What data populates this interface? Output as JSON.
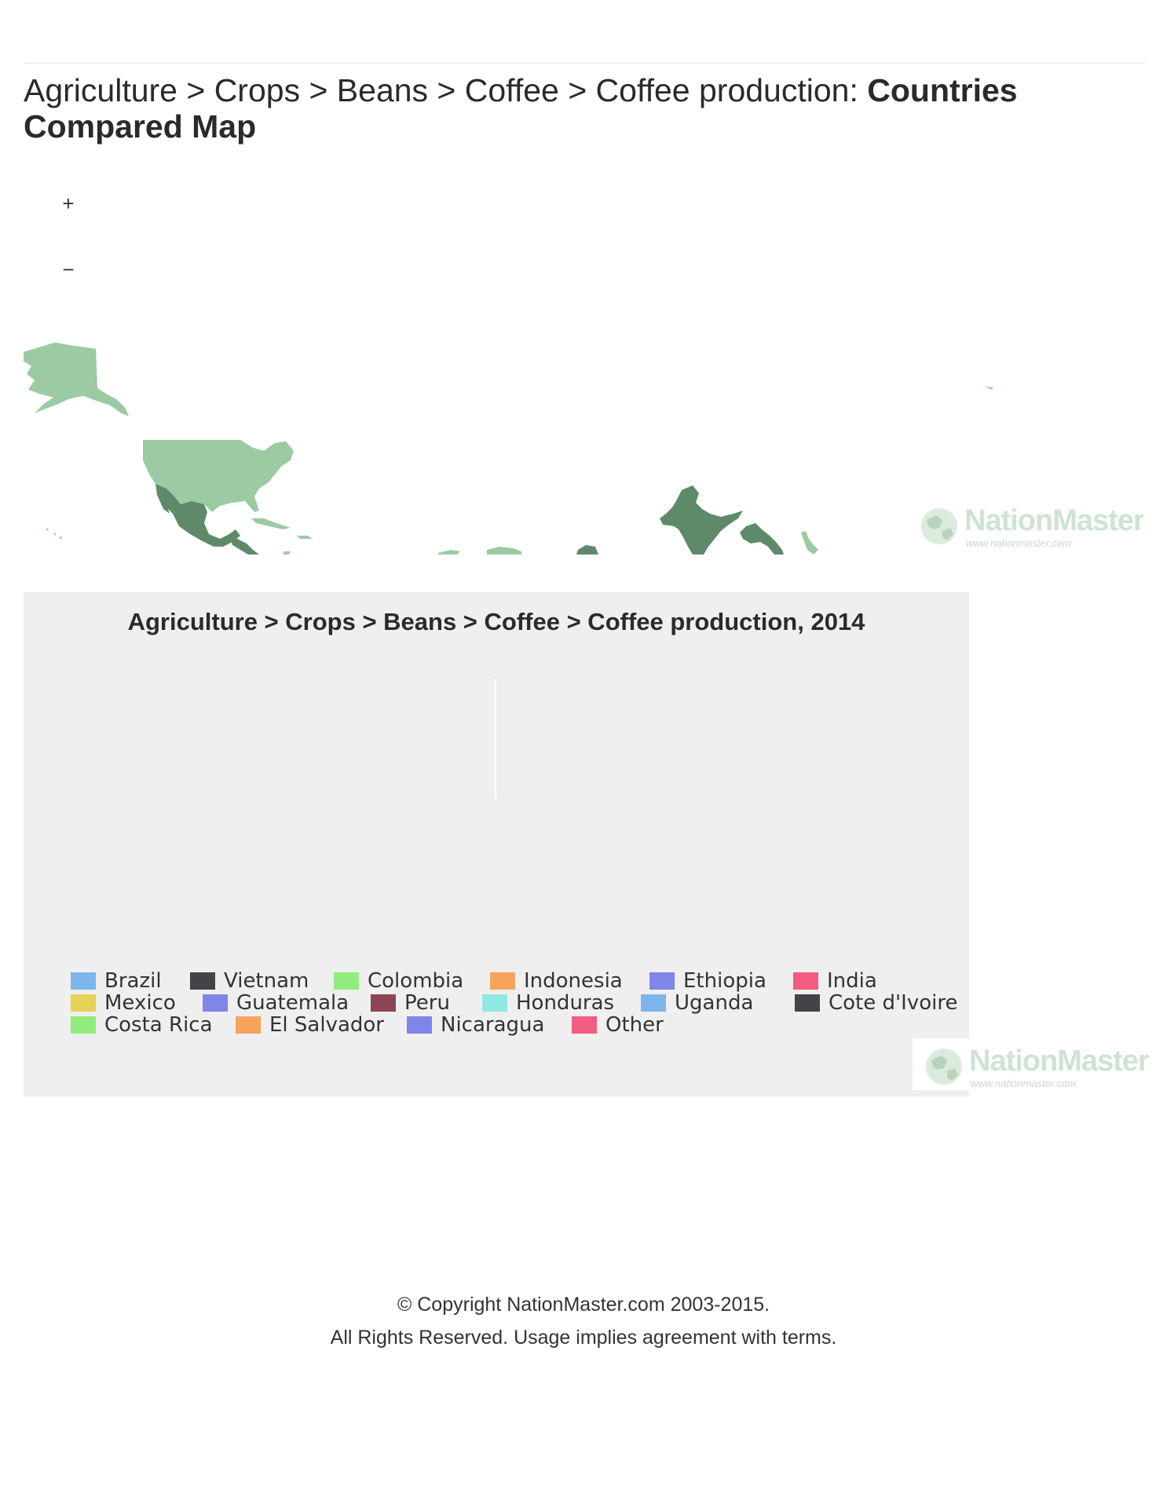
{
  "header": {
    "breadcrumb": "Agriculture > Crops > Beans > Coffee > Coffee production: ",
    "title_strong": "Countries Compared Map"
  },
  "map": {
    "zoom_in_label": "+",
    "zoom_out_label": "−",
    "colors": {
      "light": "#9ccaa2",
      "dark": "#5f8a69"
    },
    "logo": {
      "name": "NationMaster",
      "url": "www.nationmaster.com"
    }
  },
  "chart_data": {
    "type": "pie",
    "title": "Agriculture > Crops > Beans > Coffee > Coffee production, 2014",
    "legend_placement": "bottom",
    "series": [
      {
        "name": "Brazil",
        "color": "#7cb5ec"
      },
      {
        "name": "Vietnam",
        "color": "#434348"
      },
      {
        "name": "Colombia",
        "color": "#90ed7d"
      },
      {
        "name": "Indonesia",
        "color": "#f7a35c"
      },
      {
        "name": "Ethiopia",
        "color": "#8085e9"
      },
      {
        "name": "India",
        "color": "#f15c80"
      },
      {
        "name": "Mexico",
        "color": "#e4d354"
      },
      {
        "name": "Guatemala",
        "color": "#8085e8"
      },
      {
        "name": "Peru",
        "color": "#8d4653"
      },
      {
        "name": "Honduras",
        "color": "#91e8e1"
      },
      {
        "name": "Uganda",
        "color": "#7cb5ec"
      },
      {
        "name": "Cote d'Ivoire",
        "color": "#434348"
      },
      {
        "name": "Costa Rica",
        "color": "#90ed7d"
      },
      {
        "name": "El Salvador",
        "color": "#f7a35c"
      },
      {
        "name": "Nicaragua",
        "color": "#8085e9"
      },
      {
        "name": "Other",
        "color": "#f15c80"
      }
    ]
  },
  "footer": {
    "copyright": "© Copyright NationMaster.com 2003-2015.",
    "rights": "All Rights Reserved. Usage implies agreement with terms."
  }
}
